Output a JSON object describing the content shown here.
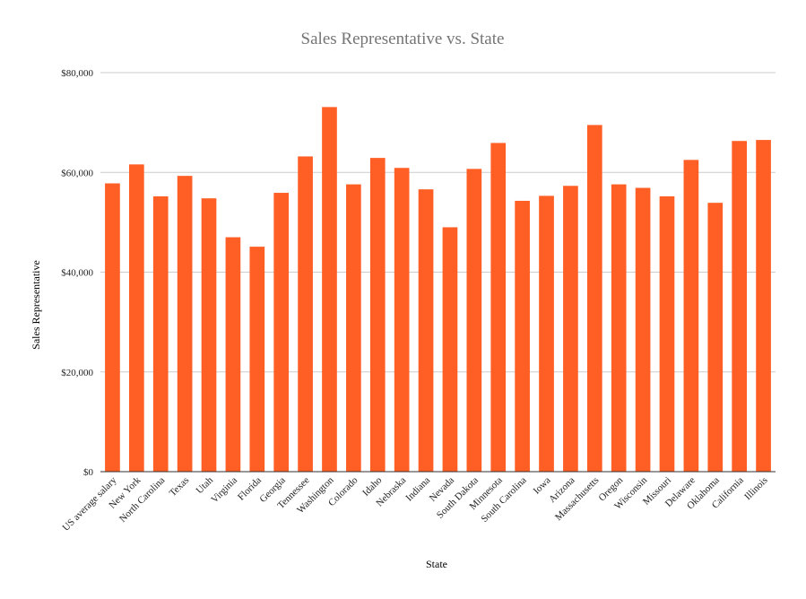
{
  "chart_data": {
    "type": "bar",
    "title": "Sales Representative vs. State",
    "xlabel": "State",
    "ylabel": "Sales Representative",
    "ylim": [
      0,
      80000
    ],
    "yticks": [
      0,
      20000,
      40000,
      60000,
      80000
    ],
    "ytick_labels": [
      "$0",
      "$20,000",
      "$40,000",
      "$60,000",
      "$80,000"
    ],
    "grid": true,
    "legend": "none",
    "color": "#ff5e24",
    "categories": [
      "US average salary",
      "New York",
      "North Carolina",
      "Texas",
      "Utah",
      "Virginia",
      "Florida",
      "Georgia",
      "Tennessee",
      "Washington",
      "Colorado",
      "Idaho",
      "Nebraska",
      "Indiana",
      "Nevada",
      "South Dakota",
      "Minnesota",
      "South Carolina",
      "Iowa",
      "Arizona",
      "Massachusetts",
      "Oregon",
      "Wisconsin",
      "Missouri",
      "Delaware",
      "Oklahoma",
      "California",
      "Illinois"
    ],
    "values": [
      57800,
      61600,
      55200,
      59300,
      54800,
      47000,
      45100,
      55900,
      63200,
      73100,
      57600,
      62900,
      60900,
      56600,
      49000,
      60700,
      65900,
      54300,
      55300,
      57300,
      69500,
      57600,
      56900,
      55200,
      62500,
      53900,
      66300,
      66500
    ]
  }
}
